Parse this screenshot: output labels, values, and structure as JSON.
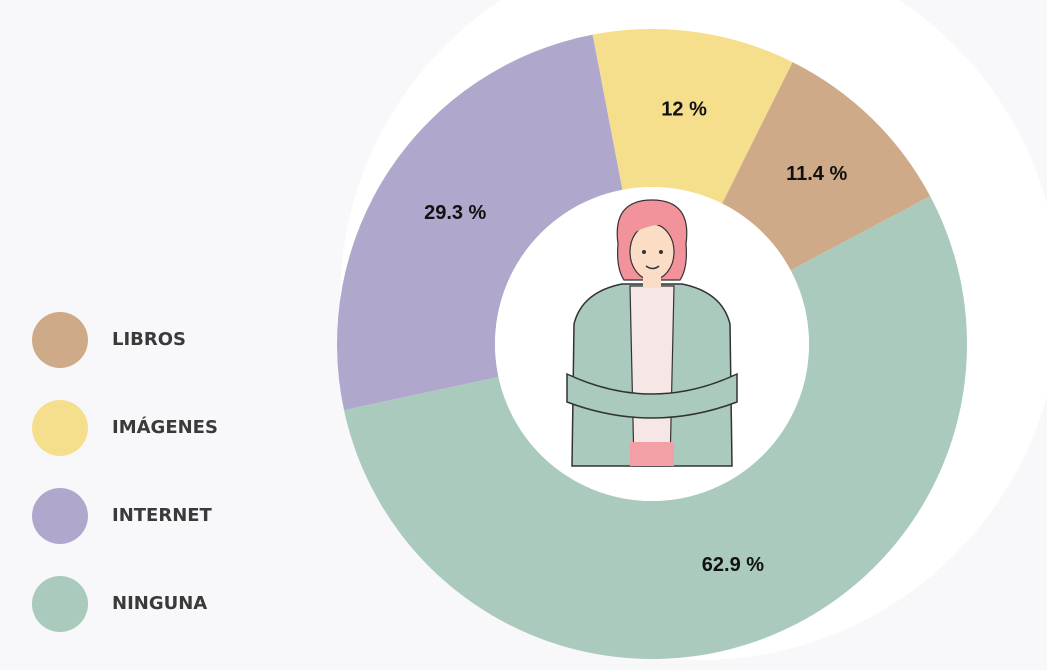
{
  "chart_data": {
    "type": "donut",
    "series": [
      {
        "name": "LIBROS",
        "color": "#cfaa88",
        "values": [
          11.4
        ],
        "value_labels": [
          "11.4 %"
        ]
      },
      {
        "name": "IMÁGENES",
        "color": "#f5df8c",
        "values": [
          12
        ],
        "value_labels": [
          "12 %"
        ]
      },
      {
        "name": "INTERNET",
        "color": "#b0a8cc",
        "values": [
          29.3
        ],
        "value_labels": [
          "29.3 %"
        ]
      },
      {
        "name": "NINGUNA",
        "color": "#a9cabc",
        "values": [
          62.9
        ],
        "value_labels": [
          "62.9  %"
        ]
      }
    ]
  }
}
